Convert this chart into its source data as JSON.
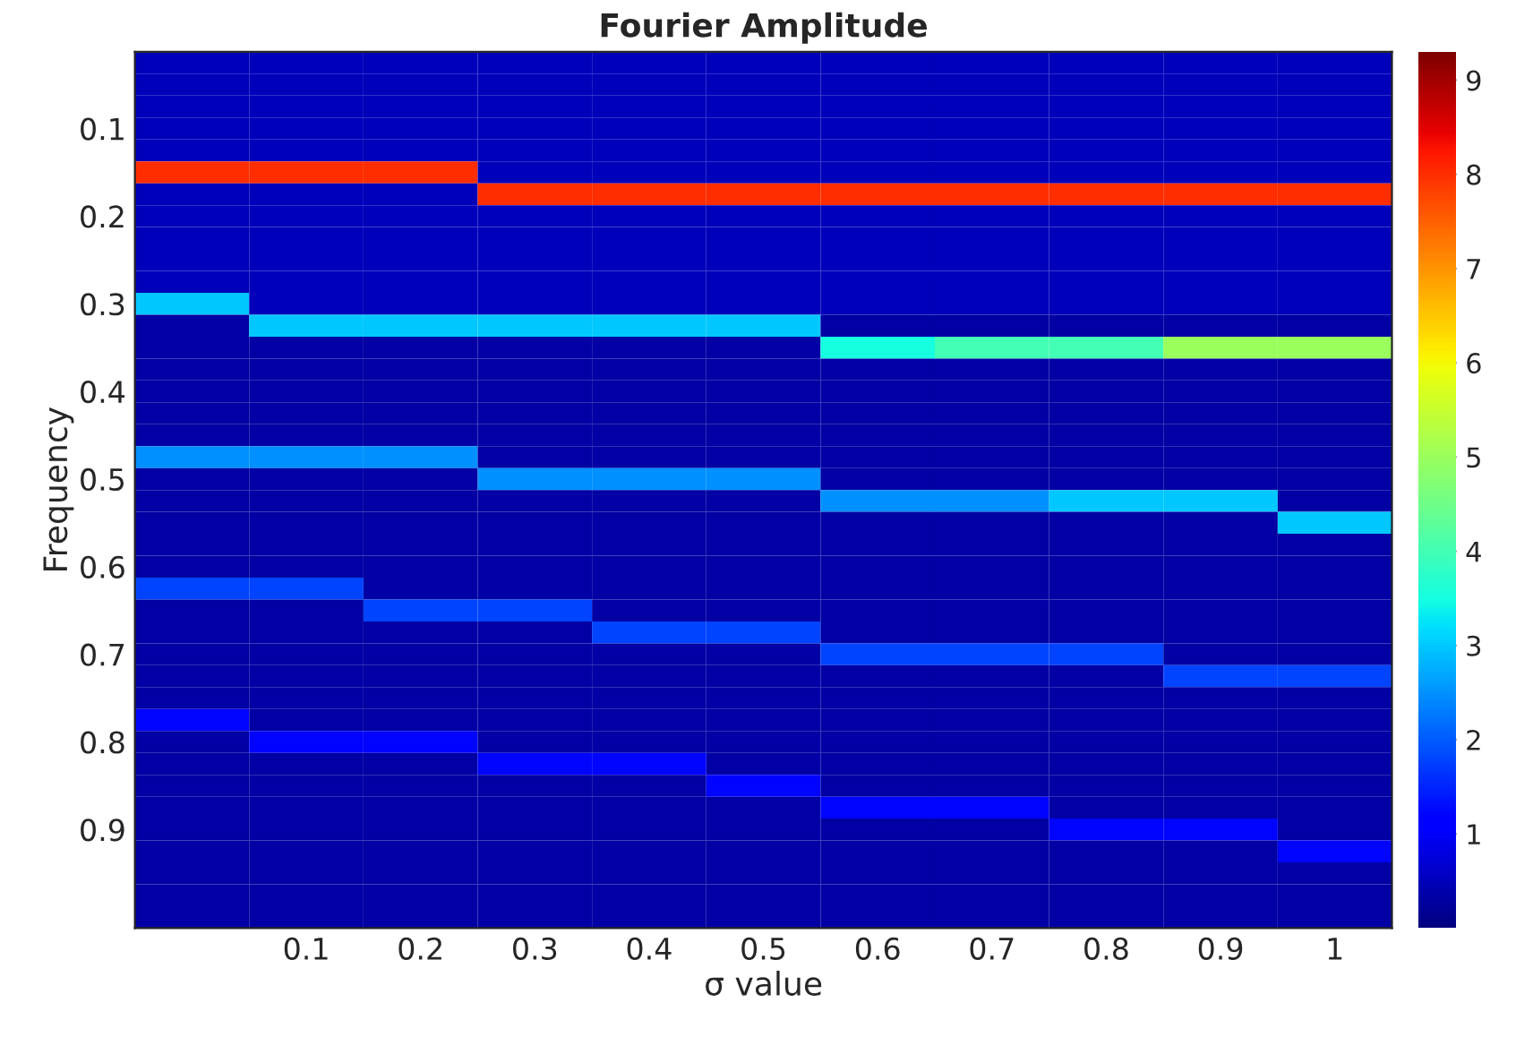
{
  "chart_data": {
    "type": "heatmap",
    "title": "Fourier Amplitude",
    "xlabel": "σ value",
    "ylabel": "Frequency",
    "categories": [
      null,
      "0.1",
      "0.2",
      "0.3",
      "0.4",
      "0.5",
      "0.6",
      "0.7",
      "0.8",
      "0.9",
      "1"
    ],
    "y_categories": [
      null,
      null,
      null,
      "0.1",
      null,
      null,
      null,
      "0.2",
      null,
      null,
      null,
      "0.3",
      null,
      null,
      null,
      "0.4",
      null,
      null,
      null,
      "0.5",
      null,
      null,
      null,
      "0.6",
      null,
      null,
      null,
      "0.7",
      null,
      null,
      null,
      "0.8",
      null,
      null,
      null,
      "0.9",
      null,
      null,
      null,
      null
    ],
    "clim": [
      0,
      9.3
    ],
    "cticks": [
      1,
      2,
      3,
      4,
      5,
      6,
      7,
      8,
      9
    ],
    "cells": [
      [
        0.5,
        0.5,
        0.5,
        0.5,
        0.5,
        0.5,
        0.5,
        0.5,
        0.5,
        0.5,
        0.5
      ],
      [
        0.5,
        0.5,
        0.5,
        0.5,
        0.5,
        0.5,
        0.5,
        0.5,
        0.5,
        0.5,
        0.5
      ],
      [
        0.5,
        0.5,
        0.5,
        0.5,
        0.5,
        0.5,
        0.5,
        0.5,
        0.5,
        0.5,
        0.5
      ],
      [
        0.5,
        0.5,
        0.5,
        0.5,
        0.5,
        0.5,
        0.5,
        0.5,
        0.5,
        0.5,
        0.5
      ],
      [
        0.5,
        0.5,
        0.5,
        0.5,
        0.5,
        0.5,
        0.5,
        0.5,
        0.5,
        0.5,
        0.5
      ],
      [
        8,
        8,
        8,
        0.5,
        0.5,
        0.5,
        0.5,
        0.5,
        0.5,
        0.5,
        0.5
      ],
      [
        0.5,
        0.5,
        0.5,
        8,
        8,
        8,
        8,
        8,
        8,
        8,
        8
      ],
      [
        0.5,
        0.5,
        0.5,
        0.5,
        0.5,
        0.5,
        0.5,
        0.5,
        0.5,
        0.5,
        0.5
      ],
      [
        0.5,
        0.5,
        0.5,
        0.5,
        0.5,
        0.5,
        0.5,
        0.5,
        0.5,
        0.5,
        0.5
      ],
      [
        0.5,
        0.5,
        0.5,
        0.5,
        0.5,
        0.5,
        0.5,
        0.5,
        0.5,
        0.5,
        0.5
      ],
      [
        0.5,
        0.5,
        0.5,
        0.5,
        0.5,
        0.5,
        0.5,
        0.5,
        0.5,
        0.5,
        0.5
      ],
      [
        3,
        0.5,
        0.5,
        0.5,
        0.5,
        0.5,
        0.5,
        0.5,
        0.5,
        0.5,
        0.5
      ],
      [
        0.3,
        3,
        3,
        3,
        3,
        3,
        0.3,
        0.3,
        0.3,
        0.3,
        0.3
      ],
      [
        0.3,
        0.3,
        0.3,
        0.3,
        0.3,
        0.3,
        3.5,
        4,
        4,
        5,
        5
      ],
      [
        0.3,
        0.3,
        0.3,
        0.3,
        0.3,
        0.3,
        0.3,
        0.3,
        0.3,
        0.3,
        0.3
      ],
      [
        0.3,
        0.3,
        0.3,
        0.3,
        0.3,
        0.3,
        0.3,
        0.3,
        0.3,
        0.3,
        0.3
      ],
      [
        0.3,
        0.3,
        0.3,
        0.3,
        0.3,
        0.3,
        0.3,
        0.3,
        0.3,
        0.3,
        0.3
      ],
      [
        0.3,
        0.3,
        0.3,
        0.3,
        0.3,
        0.3,
        0.3,
        0.3,
        0.3,
        0.3,
        0.3
      ],
      [
        2.5,
        2.5,
        2.5,
        0.3,
        0.3,
        0.3,
        0.3,
        0.3,
        0.3,
        0.3,
        0.3
      ],
      [
        0.3,
        0.3,
        0.3,
        2.5,
        2.5,
        2.5,
        0.3,
        0.3,
        0.3,
        0.3,
        0.3
      ],
      [
        0.3,
        0.3,
        0.3,
        0.3,
        0.3,
        0.3,
        2.5,
        2.5,
        3,
        3,
        0.3
      ],
      [
        0.3,
        0.3,
        0.3,
        0.3,
        0.3,
        0.3,
        0.3,
        0.3,
        0.3,
        0.3,
        3
      ],
      [
        0.3,
        0.3,
        0.3,
        0.3,
        0.3,
        0.3,
        0.3,
        0.3,
        0.3,
        0.3,
        0.3
      ],
      [
        0.3,
        0.3,
        0.3,
        0.3,
        0.3,
        0.3,
        0.3,
        0.3,
        0.3,
        0.3,
        0.3
      ],
      [
        1.8,
        1.8,
        0.3,
        0.3,
        0.3,
        0.3,
        0.3,
        0.3,
        0.3,
        0.3,
        0.3
      ],
      [
        0.3,
        0.3,
        1.8,
        1.8,
        0.3,
        0.3,
        0.3,
        0.3,
        0.3,
        0.3,
        0.3
      ],
      [
        0.3,
        0.3,
        0.3,
        0.3,
        1.8,
        1.8,
        0.3,
        0.3,
        0.3,
        0.3,
        0.3
      ],
      [
        0.3,
        0.3,
        0.3,
        0.3,
        0.3,
        0.3,
        1.8,
        1.8,
        1.8,
        0.3,
        0.3
      ],
      [
        0.3,
        0.3,
        0.3,
        0.3,
        0.3,
        0.3,
        0.3,
        0.3,
        0.3,
        1.8,
        1.8
      ],
      [
        0.3,
        0.3,
        0.3,
        0.3,
        0.3,
        0.3,
        0.3,
        0.3,
        0.3,
        0.3,
        0.3
      ],
      [
        1.2,
        0.3,
        0.3,
        0.3,
        0.3,
        0.3,
        0.3,
        0.3,
        0.3,
        0.3,
        0.3
      ],
      [
        0.3,
        1.2,
        1.2,
        0.3,
        0.3,
        0.3,
        0.3,
        0.3,
        0.3,
        0.3,
        0.3
      ],
      [
        0.3,
        0.3,
        0.3,
        1.2,
        1.2,
        0.3,
        0.3,
        0.3,
        0.3,
        0.3,
        0.3
      ],
      [
        0.3,
        0.3,
        0.3,
        0.3,
        0.3,
        1.2,
        0.3,
        0.3,
        0.3,
        0.3,
        0.3
      ],
      [
        0.3,
        0.3,
        0.3,
        0.3,
        0.3,
        0.3,
        1.2,
        1.2,
        0.3,
        0.3,
        0.3
      ],
      [
        0.3,
        0.3,
        0.3,
        0.3,
        0.3,
        0.3,
        0.3,
        0.3,
        1.2,
        1.2,
        0.3
      ],
      [
        0.3,
        0.3,
        0.3,
        0.3,
        0.3,
        0.3,
        0.3,
        0.3,
        0.3,
        0.3,
        1.2
      ],
      [
        0.3,
        0.3,
        0.3,
        0.3,
        0.3,
        0.3,
        0.3,
        0.3,
        0.3,
        0.3,
        0.3
      ],
      [
        0.3,
        0.3,
        0.3,
        0.3,
        0.3,
        0.3,
        0.3,
        0.3,
        0.3,
        0.3,
        0.3
      ],
      [
        0.3,
        0.3,
        0.3,
        0.3,
        0.3,
        0.3,
        0.3,
        0.3,
        0.3,
        0.3,
        0.3
      ]
    ]
  }
}
